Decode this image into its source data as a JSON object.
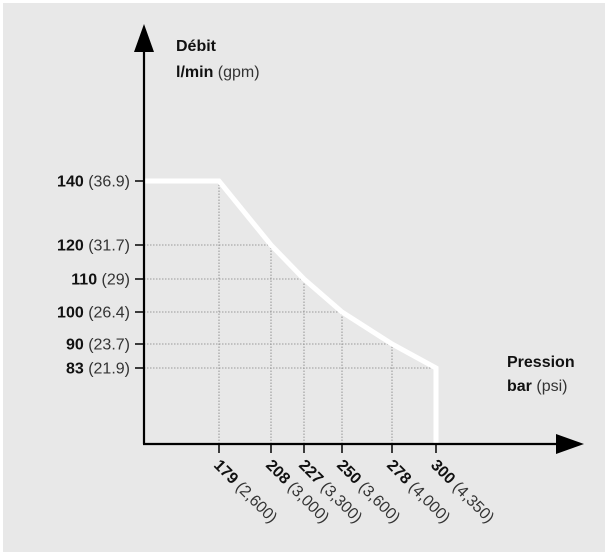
{
  "colors": {
    "background": "#e8e8e8",
    "axis": "#000000",
    "curve": "#ffffff",
    "grid": "#808080",
    "text": "#111111"
  },
  "chart_data": {
    "type": "line",
    "ylabel": {
      "title": "Débit",
      "unit_primary": "l/min",
      "unit_secondary": "(gpm)"
    },
    "xlabel": {
      "title": "Pression",
      "unit_primary": "bar",
      "unit_secondary": "(psi)"
    },
    "y_ticks": [
      {
        "value": 140,
        "primary": "140",
        "secondary": "(36.9)"
      },
      {
        "value": 120,
        "primary": "120",
        "secondary": "(31.7)"
      },
      {
        "value": 110,
        "primary": "110",
        "secondary": "(29)"
      },
      {
        "value": 100,
        "primary": "100",
        "secondary": "(26.4)"
      },
      {
        "value": 90,
        "primary": "90",
        "secondary": "(23.7)"
      },
      {
        "value": 83,
        "primary": "83",
        "secondary": "(21.9)"
      }
    ],
    "x_ticks": [
      {
        "value": 179,
        "primary": "179",
        "secondary": "(2,600)"
      },
      {
        "value": 208,
        "primary": "208",
        "secondary": "(3,000)"
      },
      {
        "value": 227,
        "primary": "227",
        "secondary": "(3,300)"
      },
      {
        "value": 250,
        "primary": "250",
        "secondary": "(3,600)"
      },
      {
        "value": 278,
        "primary": "278",
        "secondary": "(4,000)"
      },
      {
        "value": 300,
        "primary": "300",
        "secondary": "(4,350)"
      }
    ],
    "series": [
      {
        "points": [
          {
            "x": 0,
            "y": 140
          },
          {
            "x": 179,
            "y": 140
          },
          {
            "x": 208,
            "y": 120
          },
          {
            "x": 227,
            "y": 110
          },
          {
            "x": 250,
            "y": 100
          },
          {
            "x": 278,
            "y": 90
          },
          {
            "x": 300,
            "y": 83
          },
          {
            "x": 300,
            "y": 0
          }
        ]
      }
    ],
    "grid": true
  }
}
